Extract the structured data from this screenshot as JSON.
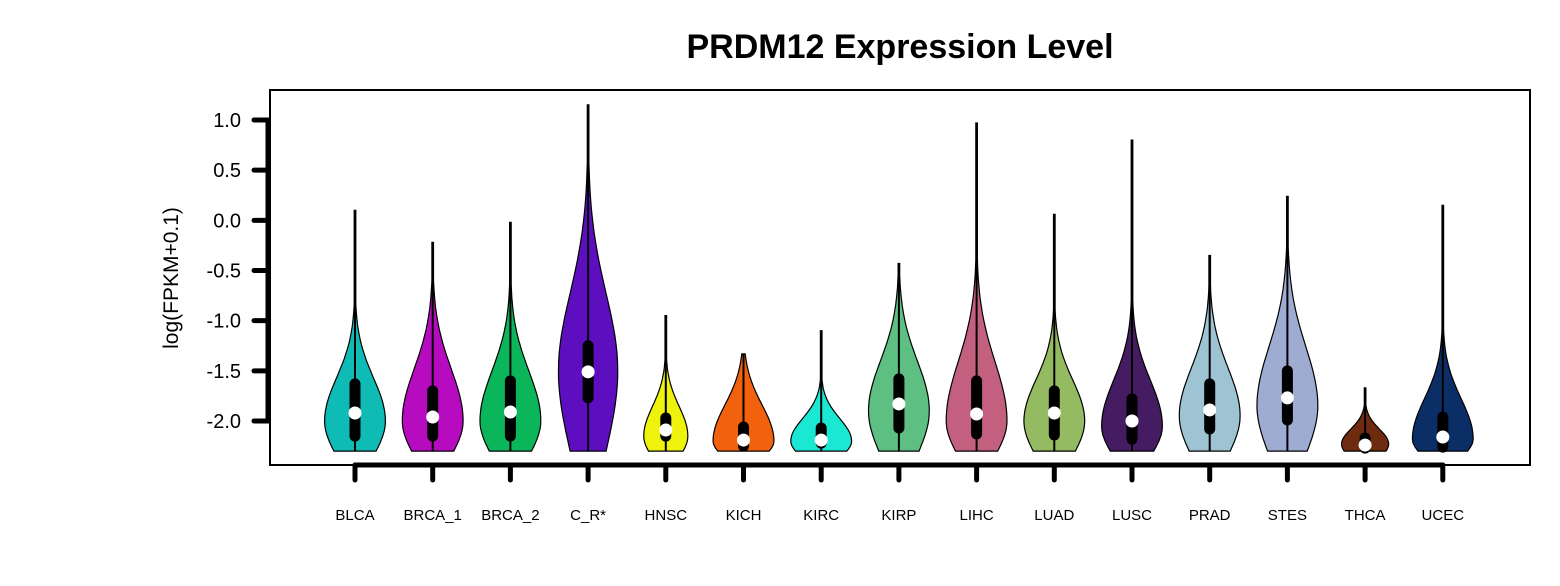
{
  "chart_data": {
    "type": "violin",
    "title": "PRDM12 Expression Level",
    "ylabel": "log(FPKM+0.1)",
    "xlabel": "",
    "ylim": [
      -2.45,
      1.28
    ],
    "yticks": [
      1.0,
      0.5,
      0.0,
      -0.5,
      -1.0,
      -1.5,
      -2.0
    ],
    "ytick_labels": [
      "1.0",
      "0.5",
      "0.0",
      "-0.5",
      "-1.0",
      "-1.5",
      "-2.0"
    ],
    "grid": false,
    "categories": [
      "BLCA",
      "BRCA_1",
      "BRCA_2",
      "C_R*",
      "HNSC",
      "KICH",
      "KIRC",
      "KIRP",
      "LIHC",
      "LUAD",
      "LUSC",
      "PRAD",
      "STES",
      "THCA",
      "UCEC"
    ],
    "series": [
      {
        "category": "BLCA",
        "color": "#0fbbb5",
        "min": -2.3,
        "max": 0.1,
        "q1": -2.15,
        "median": -1.92,
        "q3": -1.63,
        "mode": -2.0,
        "density_top": -1.05,
        "width": 0.8
      },
      {
        "category": "BRCA_1",
        "color": "#b70bbf",
        "min": -2.3,
        "max": -0.22,
        "q1": -2.15,
        "median": -1.96,
        "q3": -1.7,
        "mode": -2.0,
        "density_top": -0.85,
        "width": 0.8
      },
      {
        "category": "BRCA_2",
        "color": "#0bb55a",
        "min": -2.3,
        "max": -0.02,
        "q1": -2.15,
        "median": -1.91,
        "q3": -1.6,
        "mode": -2.0,
        "density_top": -0.9,
        "width": 0.8
      },
      {
        "category": "C_R*",
        "color": "#5d0fc0",
        "min": -2.3,
        "max": 1.15,
        "q1": -1.77,
        "median": -1.51,
        "q3": -1.25,
        "mode": -1.5,
        "density_top": 0.2,
        "width": 0.78
      },
      {
        "category": "HNSC",
        "color": "#eef20d",
        "min": -2.3,
        "max": -0.95,
        "q1": -2.15,
        "median": -2.09,
        "q3": -1.97,
        "mode": -2.15,
        "density_top": -1.5,
        "width": 0.58
      },
      {
        "category": "KICH",
        "color": "#f2620d",
        "min": -2.3,
        "max": -1.33,
        "q1": -2.25,
        "median": -2.19,
        "q3": -2.06,
        "mode": -2.2,
        "density_top": -1.4,
        "width": 0.8
      },
      {
        "category": "KIRC",
        "color": "#1ae8d3",
        "min": -2.3,
        "max": -1.1,
        "q1": -2.22,
        "median": -2.19,
        "q3": -2.07,
        "mode": -2.2,
        "density_top": -1.7,
        "width": 0.8
      },
      {
        "category": "KIRP",
        "color": "#5ebf82",
        "min": -2.3,
        "max": -0.43,
        "q1": -2.07,
        "median": -1.83,
        "q3": -1.58,
        "mode": -1.9,
        "density_top": -0.8,
        "width": 0.8
      },
      {
        "category": "LIHC",
        "color": "#c4607f",
        "min": -2.3,
        "max": 0.97,
        "q1": -2.13,
        "median": -1.93,
        "q3": -1.6,
        "mode": -2.0,
        "density_top": -0.7,
        "width": 0.8
      },
      {
        "category": "LUAD",
        "color": "#95bb62",
        "min": -2.3,
        "max": 0.06,
        "q1": -2.14,
        "median": -1.92,
        "q3": -1.7,
        "mode": -2.0,
        "density_top": -1.1,
        "width": 0.8
      },
      {
        "category": "LUSC",
        "color": "#451b61",
        "min": -2.3,
        "max": 0.8,
        "q1": -2.18,
        "median": -2.0,
        "q3": -1.78,
        "mode": -2.05,
        "density_top": -1.05,
        "width": 0.8
      },
      {
        "category": "PRAD",
        "color": "#9ec3d2",
        "min": -2.3,
        "max": -0.35,
        "q1": -2.08,
        "median": -1.89,
        "q3": -1.63,
        "mode": -1.95,
        "density_top": -0.9,
        "width": 0.8
      },
      {
        "category": "STES",
        "color": "#9eacd2",
        "min": -2.3,
        "max": 0.24,
        "q1": -1.99,
        "median": -1.77,
        "q3": -1.5,
        "mode": -1.85,
        "density_top": -0.55,
        "width": 0.8
      },
      {
        "category": "THCA",
        "color": "#6e2b0f",
        "min": -2.3,
        "max": -1.67,
        "q1": -2.27,
        "median": -2.24,
        "q3": -2.17,
        "mode": -2.23,
        "density_top": -1.95,
        "width": 0.62
      },
      {
        "category": "UCEC",
        "color": "#0c2e66",
        "min": -2.3,
        "max": 0.15,
        "q1": -2.26,
        "median": -2.16,
        "q3": -1.96,
        "mode": -2.18,
        "density_top": -1.3,
        "width": 0.8
      }
    ]
  }
}
